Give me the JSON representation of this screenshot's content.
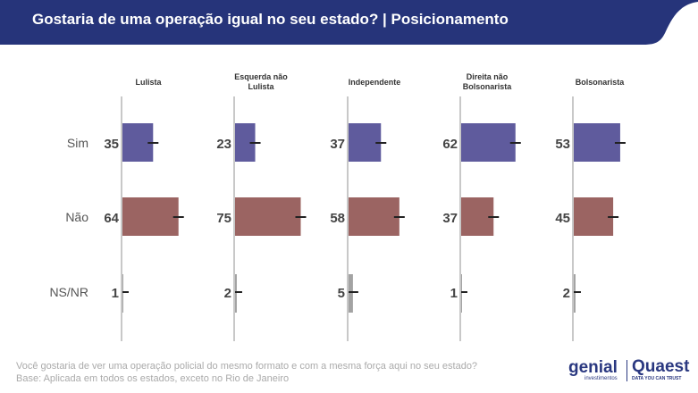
{
  "header": {
    "title": "Gostaria de uma operação igual no seu estado? | Posicionamento",
    "color": "#26347a"
  },
  "chart_data": {
    "type": "bar",
    "orientation": "horizontal",
    "title": "Gostaria de uma operação igual no seu estado? | Posicionamento",
    "panels": [
      "Lulista",
      "Esquerda não Lulista",
      "Independente",
      "Direita não Bolsonarista",
      "Bolsonarista"
    ],
    "panel_lines": [
      [
        "Lulista"
      ],
      [
        "Esquerda não",
        "Lulista"
      ],
      [
        "Independente"
      ],
      [
        "Direita não",
        "Bolsonarista"
      ],
      [
        "Bolsonarista"
      ]
    ],
    "categories": [
      "Sim",
      "Não",
      "NS/NR"
    ],
    "values": [
      [
        35,
        64,
        1
      ],
      [
        23,
        75,
        2
      ],
      [
        37,
        58,
        5
      ],
      [
        62,
        37,
        1
      ],
      [
        53,
        45,
        2
      ]
    ],
    "colors": {
      "Sim": "#5f5b9d",
      "Não": "#9b6462",
      "NS/NR": "#a3a3a3"
    },
    "error_bars": true,
    "xlim": [
      0,
      100
    ]
  },
  "footer": {
    "question": "Você gostaria de ver uma operação policial do mesmo formato e com a mesma força aqui no seu estado?",
    "base": "Base: Aplicada em todos os estados, exceto no Rio de Janeiro"
  },
  "logos": {
    "genial": "genial",
    "genial_sub": "investimentos",
    "quaest": "Quaest",
    "quaest_sub": "DATA YOU CAN TRUST"
  }
}
